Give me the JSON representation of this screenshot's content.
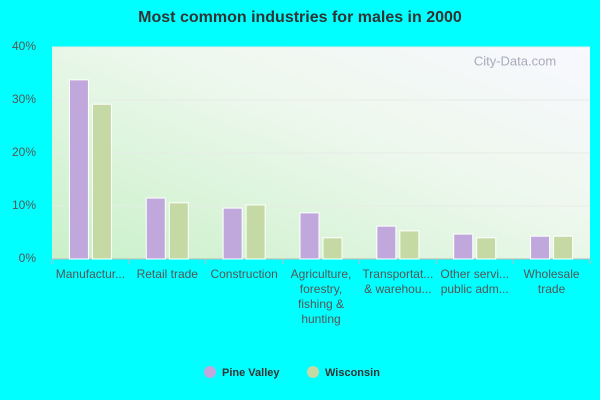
{
  "chart_data": {
    "type": "bar",
    "title": "Most common industries for males in 2000",
    "watermark": "City-Data.com",
    "categories": [
      "Manufactur...",
      "Retail trade",
      "Construction",
      "Agriculture,\nforestry,\nfishing &\nhunting",
      "Transportat...\n& warehou...",
      "Other servi...\npublic adm...",
      "Wholesale\ntrade"
    ],
    "series": [
      {
        "name": "Pine Valley",
        "color": "#c0a8dc",
        "values": [
          33.8,
          11.5,
          9.6,
          8.7,
          6.2,
          4.7,
          4.3
        ]
      },
      {
        "name": "Wisconsin",
        "color": "#c5d9a5",
        "values": [
          29.2,
          10.6,
          10.2,
          4.0,
          5.3,
          4.0,
          4.3
        ]
      }
    ],
    "ylim": [
      0,
      40
    ],
    "yticks": [
      {
        "value": 0,
        "label": "0%"
      },
      {
        "value": 10,
        "label": "10%"
      },
      {
        "value": 20,
        "label": "20%"
      },
      {
        "value": 30,
        "label": "30%"
      },
      {
        "value": 40,
        "label": "40%"
      }
    ],
    "grid": true,
    "legend": "bottom"
  }
}
